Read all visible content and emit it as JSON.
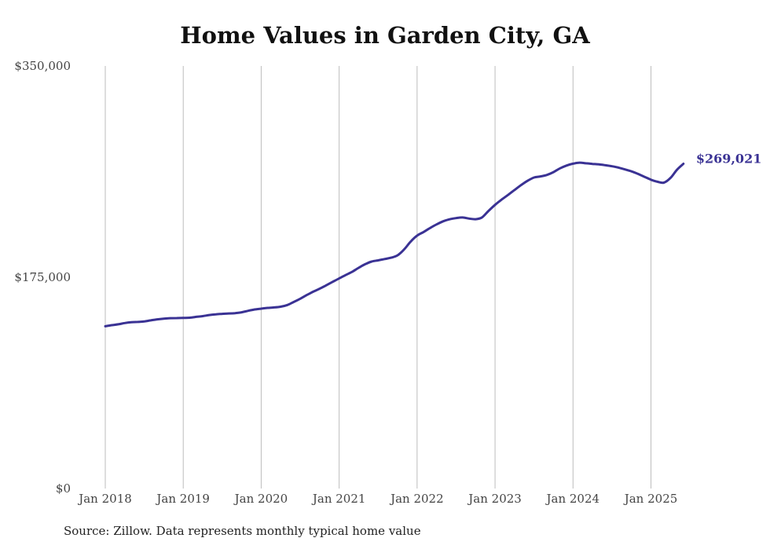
{
  "chart_data": {
    "type": "line",
    "title": "Home Values in Garden City, GA",
    "source_note": "Source: Zillow. Data represents monthly typical home value",
    "xlabel": "",
    "ylabel": "",
    "ylim": [
      0,
      350000
    ],
    "y_ticks": [
      {
        "value": 0,
        "label": "$0"
      },
      {
        "value": 175000,
        "label": "$175,000"
      },
      {
        "value": 350000,
        "label": "$350,000"
      }
    ],
    "x_ticks": [
      {
        "value": "2018-01",
        "label": "Jan 2018"
      },
      {
        "value": "2019-01",
        "label": "Jan 2019"
      },
      {
        "value": "2020-01",
        "label": "Jan 2020"
      },
      {
        "value": "2021-01",
        "label": "Jan 2021"
      },
      {
        "value": "2022-01",
        "label": "Jan 2022"
      },
      {
        "value": "2023-01",
        "label": "Jan 2023"
      },
      {
        "value": "2024-01",
        "label": "Jan 2024"
      },
      {
        "value": "2025-01",
        "label": "Jan 2025"
      }
    ],
    "grid": {
      "vertical": true,
      "horizontal": false
    },
    "line_color": "#3a3294",
    "series": [
      {
        "x": [
          "2018-01",
          "2018-02",
          "2018-03",
          "2018-04",
          "2018-05",
          "2018-06",
          "2018-07",
          "2018-08",
          "2018-09",
          "2018-10",
          "2018-11",
          "2018-12",
          "2019-01",
          "2019-02",
          "2019-03",
          "2019-04",
          "2019-05",
          "2019-06",
          "2019-07",
          "2019-08",
          "2019-09",
          "2019-10",
          "2019-11",
          "2019-12",
          "2020-01",
          "2020-02",
          "2020-03",
          "2020-04",
          "2020-05",
          "2020-06",
          "2020-07",
          "2020-08",
          "2020-09",
          "2020-10",
          "2020-11",
          "2020-12",
          "2021-01",
          "2021-02",
          "2021-03",
          "2021-04",
          "2021-05",
          "2021-06",
          "2021-07",
          "2021-08",
          "2021-09",
          "2021-10",
          "2021-11",
          "2021-12",
          "2022-01",
          "2022-02",
          "2022-03",
          "2022-04",
          "2022-05",
          "2022-06",
          "2022-07",
          "2022-08",
          "2022-09",
          "2022-10",
          "2022-11",
          "2022-12",
          "2023-01",
          "2023-02",
          "2023-03",
          "2023-04",
          "2023-05",
          "2023-06",
          "2023-07",
          "2023-08",
          "2023-09",
          "2023-10",
          "2023-11",
          "2023-12",
          "2024-01",
          "2024-02",
          "2024-03",
          "2024-04",
          "2024-05",
          "2024-06",
          "2024-07",
          "2024-08",
          "2024-09",
          "2024-10",
          "2024-11",
          "2024-12",
          "2025-01",
          "2025-02",
          "2025-03",
          "2025-04",
          "2025-05",
          "2025-06"
        ],
        "values": [
          134400,
          135300,
          136000,
          137100,
          137800,
          138000,
          138400,
          139300,
          140100,
          140700,
          141100,
          141200,
          141300,
          141500,
          142200,
          142800,
          143700,
          144300,
          144700,
          145000,
          145300,
          146000,
          147200,
          148300,
          149000,
          149600,
          150000,
          150600,
          152000,
          154500,
          157200,
          160200,
          163000,
          165500,
          168300,
          171200,
          174000,
          176800,
          179500,
          182800,
          185800,
          188000,
          189000,
          190100,
          191200,
          193200,
          198000,
          204500,
          209500,
          212500,
          215800,
          218800,
          221300,
          223000,
          224000,
          224500,
          223600,
          223100,
          224600,
          230000,
          235000,
          239300,
          243200,
          247300,
          251300,
          254900,
          257600,
          258500,
          259800,
          262100,
          265200,
          267500,
          269100,
          269900,
          269400,
          268900,
          268500,
          267800,
          266900,
          265800,
          264300,
          262700,
          260600,
          258200,
          255800,
          254100,
          253400,
          257200,
          264000,
          269021
        ]
      }
    ],
    "end_label": "$269,021"
  }
}
